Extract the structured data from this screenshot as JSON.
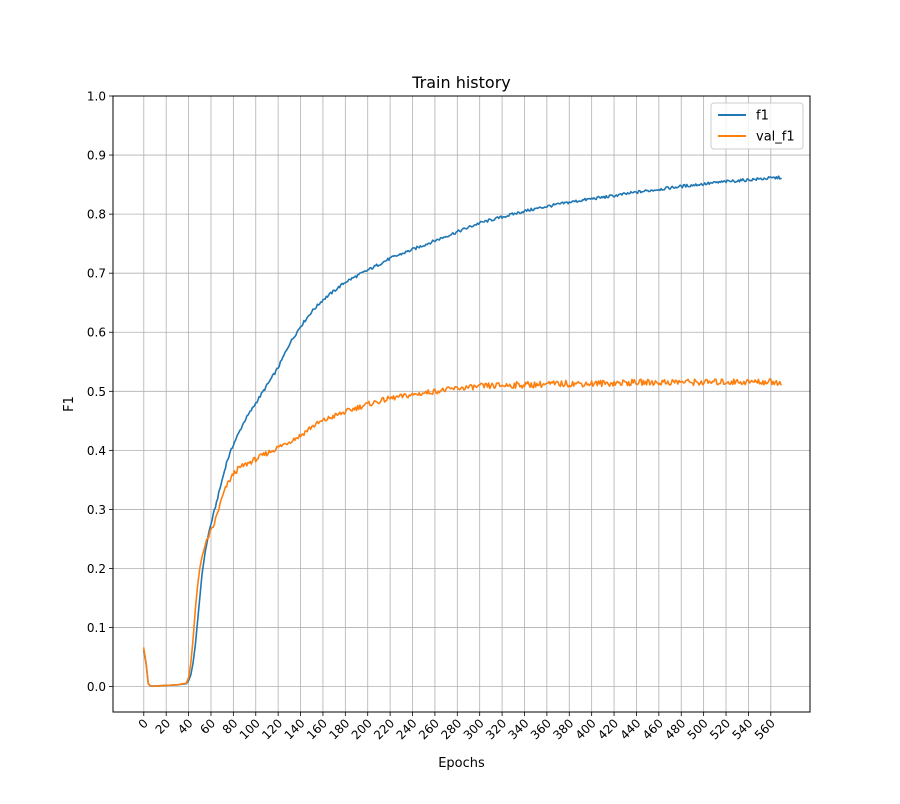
{
  "chart_data": {
    "type": "line",
    "title": "Train history",
    "xlabel": "Epochs",
    "ylabel": "F1",
    "xlim": [
      -27.5,
      595
    ],
    "ylim": [
      -0.043,
      1.0
    ],
    "xticks": [
      0,
      20,
      40,
      60,
      80,
      100,
      120,
      140,
      160,
      180,
      200,
      220,
      240,
      260,
      280,
      300,
      320,
      340,
      360,
      380,
      400,
      420,
      440,
      460,
      480,
      500,
      520,
      540,
      560
    ],
    "yticks": [
      0.0,
      0.1,
      0.2,
      0.3,
      0.4,
      0.5,
      0.6,
      0.7,
      0.8,
      0.9,
      1.0
    ],
    "xtick_labels": [
      "0",
      "20",
      "40",
      "60",
      "80",
      "100",
      "120",
      "140",
      "160",
      "180",
      "200",
      "220",
      "240",
      "260",
      "280",
      "300",
      "320",
      "340",
      "360",
      "380",
      "400",
      "420",
      "440",
      "460",
      "480",
      "500",
      "520",
      "540",
      "560"
    ],
    "ytick_labels": [
      "0.0",
      "0.1",
      "0.2",
      "0.3",
      "0.4",
      "0.5",
      "0.6",
      "0.7",
      "0.8",
      "0.9",
      "1.0"
    ],
    "xtick_rotation": 45,
    "grid": true,
    "legend": "top-right",
    "series": [
      {
        "name": "f1",
        "color": "#1f77b4",
        "x": [
          0,
          2,
          4,
          6,
          10,
          20,
          30,
          38,
          40,
          42,
          44,
          46,
          48,
          50,
          52,
          55,
          58,
          62,
          66,
          70,
          74,
          80,
          85,
          90,
          100,
          110,
          120,
          130,
          140,
          150,
          160,
          170,
          180,
          190,
          200,
          220,
          240,
          260,
          280,
          300,
          320,
          340,
          360,
          380,
          400,
          420,
          440,
          460,
          480,
          500,
          520,
          540,
          560,
          569
        ],
        "y": [
          0.06,
          0.04,
          0.005,
          0.001,
          0.001,
          0.002,
          0.003,
          0.005,
          0.01,
          0.02,
          0.04,
          0.07,
          0.11,
          0.15,
          0.19,
          0.23,
          0.26,
          0.29,
          0.32,
          0.35,
          0.38,
          0.41,
          0.43,
          0.45,
          0.48,
          0.51,
          0.54,
          0.58,
          0.61,
          0.635,
          0.655,
          0.67,
          0.685,
          0.695,
          0.705,
          0.725,
          0.74,
          0.755,
          0.77,
          0.785,
          0.795,
          0.805,
          0.813,
          0.82,
          0.826,
          0.831,
          0.837,
          0.842,
          0.847,
          0.851,
          0.855,
          0.858,
          0.861,
          0.862
        ]
      },
      {
        "name": "val_f1",
        "color": "#ff7f0e",
        "x": [
          0,
          2,
          4,
          6,
          10,
          20,
          30,
          38,
          40,
          42,
          44,
          46,
          48,
          50,
          52,
          55,
          58,
          62,
          66,
          70,
          74,
          80,
          85,
          90,
          100,
          110,
          120,
          130,
          140,
          150,
          160,
          170,
          180,
          190,
          200,
          220,
          240,
          260,
          280,
          300,
          320,
          340,
          360,
          380,
          400,
          420,
          440,
          460,
          480,
          500,
          520,
          540,
          560,
          569
        ],
        "y": [
          0.065,
          0.04,
          0.005,
          0.001,
          0.001,
          0.002,
          0.003,
          0.006,
          0.015,
          0.04,
          0.08,
          0.13,
          0.17,
          0.2,
          0.22,
          0.24,
          0.255,
          0.27,
          0.295,
          0.32,
          0.34,
          0.36,
          0.37,
          0.375,
          0.385,
          0.395,
          0.405,
          0.415,
          0.425,
          0.44,
          0.45,
          0.458,
          0.465,
          0.472,
          0.478,
          0.488,
          0.494,
          0.5,
          0.505,
          0.508,
          0.51,
          0.511,
          0.512,
          0.513,
          0.513,
          0.514,
          0.515,
          0.515,
          0.516,
          0.515,
          0.516,
          0.516,
          0.516,
          0.515
        ]
      }
    ]
  }
}
